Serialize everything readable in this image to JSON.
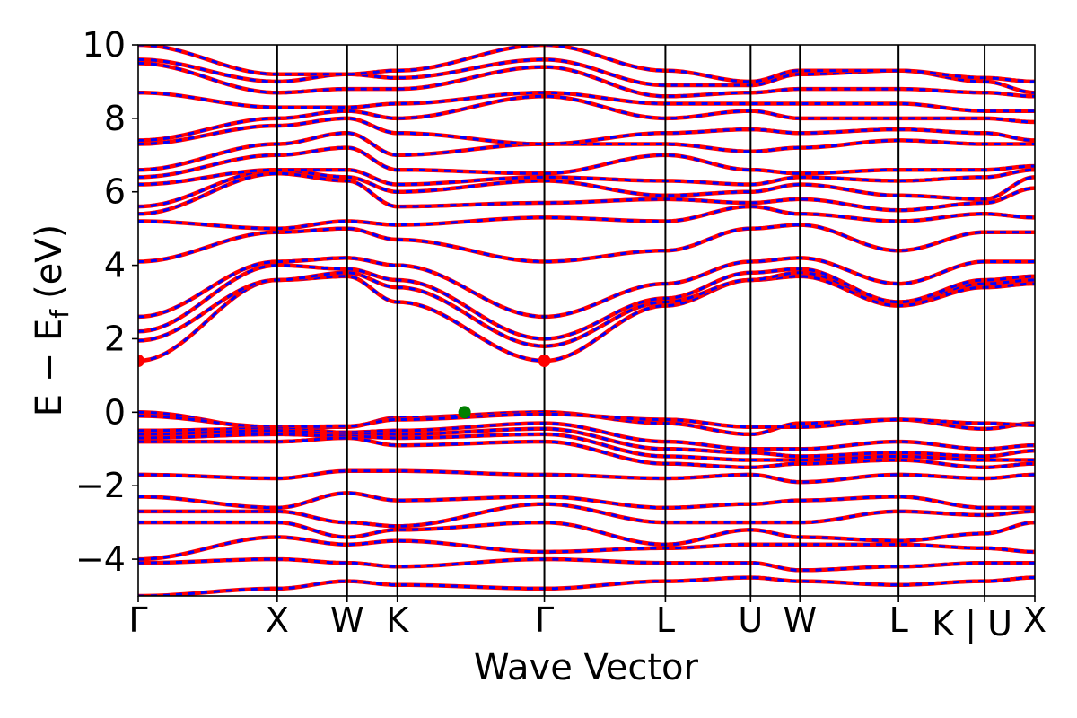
{
  "chart_data": {
    "type": "line",
    "title": "",
    "xlabel": "Wave Vector",
    "ylabel": {
      "main": "E − E",
      "subscript": "f",
      "units": "(eV)"
    },
    "ylim": [
      -5,
      10
    ],
    "yticks": [
      -4,
      -2,
      0,
      2,
      4,
      6,
      8,
      10
    ],
    "ytick_labels": [
      "−4",
      "−2",
      "0",
      "2",
      "4",
      "6",
      "8",
      "10"
    ],
    "x_range": [
      0,
      1
    ],
    "kpoints": [
      {
        "label": "Γ",
        "x": 0.0
      },
      {
        "label": "X",
        "x": 0.155
      },
      {
        "label": "W",
        "x": 0.233
      },
      {
        "label": "K",
        "x": 0.289
      },
      {
        "label": "Γ",
        "x": 0.453
      },
      {
        "label": "L",
        "x": 0.588
      },
      {
        "label": "U",
        "x": 0.683
      },
      {
        "label": "W",
        "x": 0.738
      },
      {
        "label": "L",
        "x": 0.848
      },
      {
        "label": "K | U",
        "x": 0.944
      },
      {
        "label": "X",
        "x": 1.0
      }
    ],
    "series_colors": {
      "solid": "#ff0000",
      "dashed": "#0000ff"
    },
    "bands": [
      [
        -0.0,
        -0.45,
        -0.4,
        -0.15,
        -0.0,
        -0.3,
        -0.6,
        -0.3,
        -0.2,
        -0.45,
        -0.3
      ],
      [
        -0.1,
        -0.4,
        -0.38,
        -0.2,
        -0.05,
        -0.2,
        -0.4,
        -0.4,
        -0.2,
        -0.3,
        -0.35
      ],
      [
        -0.5,
        -0.45,
        -0.55,
        -0.5,
        -0.3,
        -0.8,
        -1.0,
        -1.0,
        -0.8,
        -1.0,
        -0.9
      ],
      [
        -0.6,
        -0.5,
        -0.6,
        -0.6,
        -0.45,
        -1.0,
        -1.1,
        -1.2,
        -1.1,
        -1.2,
        -1.05
      ],
      [
        -0.7,
        -0.6,
        -0.65,
        -0.7,
        -0.6,
        -1.2,
        -1.3,
        -1.3,
        -1.2,
        -1.3,
        -1.3
      ],
      [
        -0.8,
        -0.8,
        -0.7,
        -0.9,
        -0.8,
        -1.4,
        -1.5,
        -1.4,
        -1.3,
        -1.5,
        -1.4
      ],
      [
        -1.7,
        -1.8,
        -1.6,
        -1.6,
        -1.7,
        -1.8,
        -1.7,
        -1.9,
        -1.7,
        -1.8,
        -1.7
      ],
      [
        -2.3,
        -2.6,
        -2.2,
        -2.4,
        -2.3,
        -2.6,
        -2.5,
        -2.4,
        -2.3,
        -2.6,
        -2.6
      ],
      [
        -2.7,
        -2.7,
        -3.0,
        -3.1,
        -2.5,
        -3.0,
        -3.0,
        -3.0,
        -2.7,
        -2.8,
        -2.7
      ],
      [
        -3.0,
        -3.0,
        -3.4,
        -3.2,
        -3.0,
        -3.6,
        -3.2,
        -3.4,
        -3.5,
        -3.3,
        -3.0
      ],
      [
        -4.0,
        -3.4,
        -3.6,
        -3.5,
        -3.8,
        -3.7,
        -3.6,
        -3.6,
        -3.6,
        -3.7,
        -3.8
      ],
      [
        -4.1,
        -4.0,
        -4.1,
        -4.2,
        -4.0,
        -4.1,
        -4.1,
        -4.3,
        -4.2,
        -4.1,
        -4.1
      ],
      [
        -5.0,
        -4.8,
        -4.6,
        -4.7,
        -4.8,
        -4.6,
        -4.5,
        -4.6,
        -4.7,
        -4.6,
        -4.5
      ],
      [
        1.4,
        3.6,
        3.7,
        3.0,
        1.4,
        2.9,
        3.6,
        3.7,
        2.9,
        3.4,
        3.5
      ],
      [
        1.95,
        3.6,
        3.8,
        3.4,
        1.8,
        3.0,
        3.6,
        3.8,
        3.0,
        3.5,
        3.6
      ],
      [
        2.2,
        4.0,
        3.9,
        3.6,
        2.0,
        3.1,
        3.8,
        3.9,
        3.0,
        3.6,
        3.7
      ],
      [
        2.6,
        4.1,
        4.2,
        4.0,
        2.6,
        3.5,
        4.1,
        4.2,
        3.5,
        4.1,
        4.1
      ],
      [
        4.1,
        4.9,
        5.0,
        4.7,
        4.1,
        4.4,
        5.0,
        5.1,
        4.4,
        4.9,
        4.9
      ],
      [
        5.2,
        5.0,
        5.2,
        5.1,
        5.3,
        5.2,
        5.6,
        5.4,
        5.2,
        5.4,
        5.3
      ],
      [
        5.4,
        6.5,
        6.3,
        5.6,
        5.7,
        5.8,
        5.7,
        5.8,
        5.5,
        5.7,
        6.1
      ],
      [
        5.6,
        6.6,
        6.4,
        6.0,
        6.3,
        5.9,
        6.0,
        6.2,
        5.9,
        5.8,
        6.4
      ],
      [
        6.2,
        6.6,
        6.6,
        6.2,
        6.4,
        6.3,
        6.2,
        6.4,
        6.3,
        6.4,
        6.6
      ],
      [
        6.4,
        7.0,
        7.2,
        6.6,
        6.5,
        7.0,
        6.6,
        6.5,
        6.6,
        6.6,
        6.7
      ],
      [
        6.6,
        7.3,
        7.6,
        7.0,
        7.3,
        7.3,
        7.1,
        7.2,
        7.4,
        7.3,
        7.3
      ],
      [
        7.3,
        7.8,
        8.0,
        7.6,
        7.3,
        7.6,
        7.7,
        7.6,
        7.7,
        7.6,
        7.4
      ],
      [
        7.4,
        8.0,
        8.2,
        8.0,
        8.6,
        8.0,
        8.2,
        8.0,
        8.0,
        8.0,
        7.9
      ],
      [
        8.7,
        8.3,
        8.3,
        8.4,
        8.7,
        8.4,
        8.4,
        8.4,
        8.4,
        8.2,
        8.2
      ],
      [
        9.5,
        8.7,
        8.8,
        8.8,
        9.4,
        8.6,
        8.7,
        8.8,
        8.8,
        8.7,
        8.6
      ],
      [
        9.6,
        9.0,
        9.2,
        9.1,
        9.6,
        8.9,
        8.9,
        9.2,
        9.3,
        9.0,
        8.7
      ],
      [
        10.0,
        9.2,
        9.2,
        9.3,
        10.0,
        9.3,
        9.0,
        9.3,
        9.3,
        9.1,
        9.0
      ]
    ],
    "markers": [
      {
        "x": 0.0,
        "y": 1.4,
        "color": "#ff0000"
      },
      {
        "x": 0.453,
        "y": 1.4,
        "color": "#ff0000"
      },
      {
        "x": 0.364,
        "y": 0.0,
        "color": "#008000"
      }
    ]
  }
}
